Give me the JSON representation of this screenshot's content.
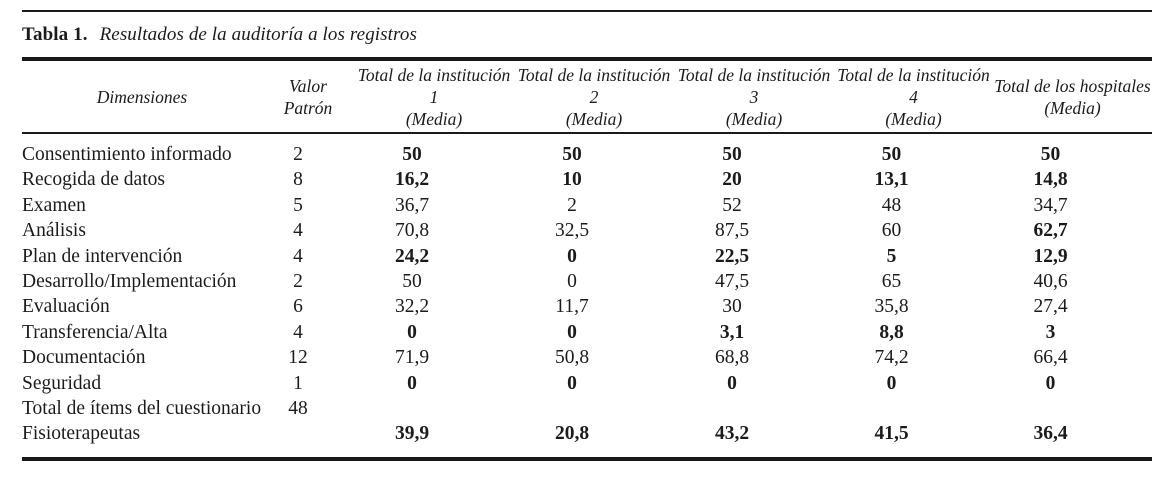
{
  "caption": {
    "label": "Tabla 1.",
    "text": "Resultados de la auditoría a los registros"
  },
  "table": {
    "columns": [
      {
        "name": "dimensiones",
        "lines": [
          "Dimensiones"
        ]
      },
      {
        "name": "valor-patron",
        "lines": [
          "Valor",
          "Patrón"
        ]
      },
      {
        "name": "institucion-1",
        "lines": [
          "Total de la institución 1",
          "(Media)"
        ]
      },
      {
        "name": "institucion-2",
        "lines": [
          "Total de la institución 2",
          "(Media)"
        ]
      },
      {
        "name": "institucion-3",
        "lines": [
          "Total de la institución 3",
          "(Media)"
        ]
      },
      {
        "name": "institucion-4",
        "lines": [
          "Total de la institución 4",
          "(Media)"
        ]
      },
      {
        "name": "hospitales",
        "lines": [
          "Total de los hospitales",
          "(Media)"
        ]
      }
    ],
    "rows": [
      {
        "label": "Consentimiento informado",
        "cells": [
          {
            "v": "2"
          },
          {
            "v": "50",
            "b": true
          },
          {
            "v": "50",
            "b": true
          },
          {
            "v": "50",
            "b": true
          },
          {
            "v": "50",
            "b": true
          },
          {
            "v": "50",
            "b": true
          }
        ]
      },
      {
        "label": "Recogida de datos",
        "cells": [
          {
            "v": "8"
          },
          {
            "v": "16,2",
            "b": true
          },
          {
            "v": "10",
            "b": true
          },
          {
            "v": "20",
            "b": true
          },
          {
            "v": "13,1",
            "b": true
          },
          {
            "v": "14,8",
            "b": true
          }
        ]
      },
      {
        "label": "Examen",
        "cells": [
          {
            "v": "5"
          },
          {
            "v": "36,7"
          },
          {
            "v": "2"
          },
          {
            "v": "52"
          },
          {
            "v": "48"
          },
          {
            "v": "34,7"
          }
        ]
      },
      {
        "label": "Análisis",
        "cells": [
          {
            "v": "4"
          },
          {
            "v": "70,8"
          },
          {
            "v": "32,5"
          },
          {
            "v": "87,5"
          },
          {
            "v": "60"
          },
          {
            "v": "62,7",
            "b": true
          }
        ]
      },
      {
        "label": "Plan de intervención",
        "cells": [
          {
            "v": "4"
          },
          {
            "v": "24,2",
            "b": true
          },
          {
            "v": "0",
            "b": true
          },
          {
            "v": "22,5",
            "b": true
          },
          {
            "v": "5",
            "b": true
          },
          {
            "v": "12,9",
            "b": true
          }
        ]
      },
      {
        "label": "Desarrollo/Implementación",
        "cells": [
          {
            "v": "2"
          },
          {
            "v": "50"
          },
          {
            "v": "0"
          },
          {
            "v": "47,5"
          },
          {
            "v": "65"
          },
          {
            "v": "40,6"
          }
        ]
      },
      {
        "label": "Evaluación",
        "cells": [
          {
            "v": "6"
          },
          {
            "v": "32,2"
          },
          {
            "v": "11,7"
          },
          {
            "v": "30"
          },
          {
            "v": "35,8"
          },
          {
            "v": "27,4"
          }
        ]
      },
      {
        "label": "Transferencia/Alta",
        "cells": [
          {
            "v": "4"
          },
          {
            "v": "0",
            "b": true
          },
          {
            "v": "0",
            "b": true
          },
          {
            "v": "3,1",
            "b": true
          },
          {
            "v": "8,8",
            "b": true
          },
          {
            "v": "3",
            "b": true
          }
        ]
      },
      {
        "label": "Documentación",
        "cells": [
          {
            "v": "12"
          },
          {
            "v": "71,9"
          },
          {
            "v": "50,8"
          },
          {
            "v": "68,8"
          },
          {
            "v": "74,2"
          },
          {
            "v": "66,4"
          }
        ]
      },
      {
        "label": "Seguridad",
        "cells": [
          {
            "v": "1"
          },
          {
            "v": "0",
            "b": true
          },
          {
            "v": "0",
            "b": true
          },
          {
            "v": "0",
            "b": true
          },
          {
            "v": "0",
            "b": true
          },
          {
            "v": "0",
            "b": true
          }
        ]
      },
      {
        "label": "Total de ítems del cuestionario",
        "cells": [
          {
            "v": "48"
          },
          {
            "v": ""
          },
          {
            "v": ""
          },
          {
            "v": ""
          },
          {
            "v": ""
          },
          {
            "v": ""
          }
        ]
      },
      {
        "label": "Fisioterapeutas",
        "cells": [
          {
            "v": ""
          },
          {
            "v": "39,9",
            "b": true
          },
          {
            "v": "20,8",
            "b": true
          },
          {
            "v": "43,2",
            "b": true
          },
          {
            "v": "41,5",
            "b": true
          },
          {
            "v": "36,4",
            "b": true
          }
        ]
      }
    ]
  }
}
